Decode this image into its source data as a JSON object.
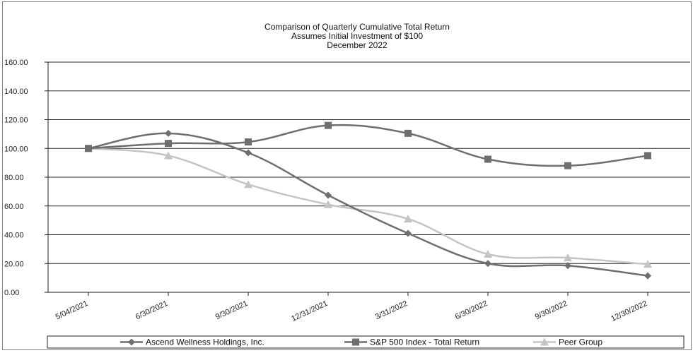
{
  "chart_data": {
    "type": "line",
    "title_lines": [
      "Comparison of Quarterly Cumulative Total Return",
      "Assumes Initial Investment of $100",
      "December 2022"
    ],
    "categories": [
      "5/04/2021",
      "6/30/2021",
      "9/30/2021",
      "12/31/2021",
      "3/31/2022",
      "6/30/2022",
      "9/30/2022",
      "12/30/2022"
    ],
    "y_ticks": [
      "0.00",
      "20.00",
      "40.00",
      "60.00",
      "80.00",
      "100.00",
      "120.00",
      "140.00",
      "160.00"
    ],
    "ylim": [
      0,
      160
    ],
    "grid": true,
    "legend_position": "bottom",
    "series": [
      {
        "name": "Ascend Wellness Holdings, Inc.",
        "marker": "diamond",
        "color": "#6e6e6e",
        "values": [
          100.0,
          110.5,
          97.0,
          67.5,
          41.0,
          20.0,
          18.5,
          11.5
        ]
      },
      {
        "name": "S&P 500 Index - Total Return",
        "marker": "square",
        "color": "#6e6e6e",
        "values": [
          100.0,
          103.5,
          104.5,
          116.0,
          110.5,
          92.5,
          88.0,
          95.0
        ]
      },
      {
        "name": "Peer Group",
        "marker": "triangle",
        "color": "#c4c4c4",
        "values": [
          100.0,
          95.0,
          75.0,
          61.0,
          51.0,
          26.5,
          24.0,
          19.5
        ]
      }
    ]
  }
}
